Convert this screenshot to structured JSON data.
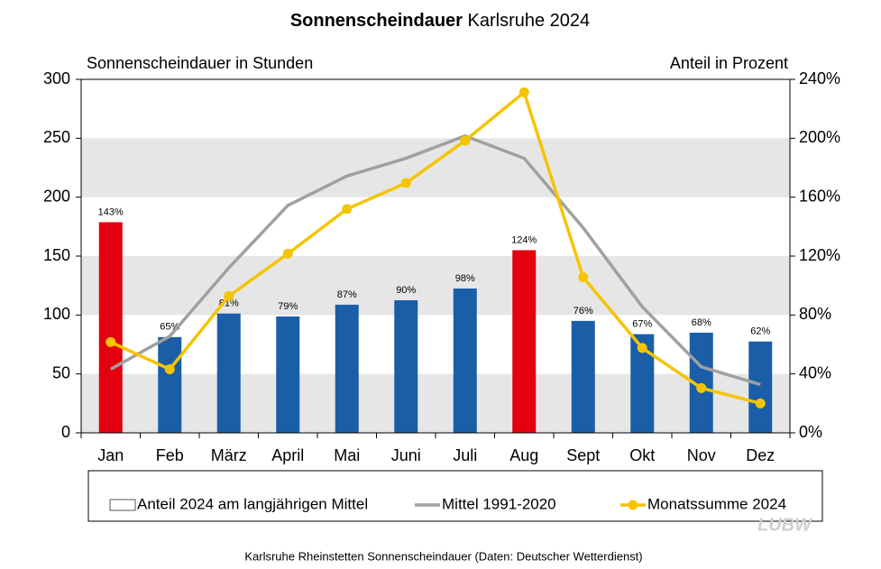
{
  "chart_data": {
    "type": "bar_line",
    "title": [
      "Sonnenscheindauer",
      "Karlsruhe 2024"
    ],
    "y_label": "Sonnenscheindauer  in Stunden",
    "y2_label": "Anteil  in Prozent",
    "footer": "Karlsruhe Rheinstetten Sonnenscheindauer (Daten: Deutscher Wetterdienst)",
    "logo": "LUBW",
    "categories": [
      "Jan",
      "Feb",
      "März",
      "April",
      "Mai",
      "Juni",
      "Juli",
      "Aug",
      "Sept",
      "Okt",
      "Nov",
      "Dez"
    ],
    "ylim": [
      0,
      300
    ],
    "yticks": [
      0,
      50,
      100,
      150,
      200,
      250,
      300
    ],
    "y2lim": [
      0,
      240
    ],
    "y2ticks": [
      {
        "value": 0,
        "label": "0%"
      },
      {
        "value": 40,
        "label": "40%"
      },
      {
        "value": 80,
        "label": "80%"
      },
      {
        "value": 120,
        "label": "120%"
      },
      {
        "value": 160,
        "label": "160%"
      },
      {
        "value": 200,
        "label": "200%"
      },
      {
        "value": 240,
        "label": "240%"
      }
    ],
    "bands": true,
    "series": [
      {
        "name": "Anteil 2024 am langjährigen Mittel",
        "kind": "bar",
        "axis": "y2",
        "colors": [
          "#e3000f",
          "#1a5ea8",
          "#1a5ea8",
          "#1a5ea8",
          "#1a5ea8",
          "#1a5ea8",
          "#1a5ea8",
          "#e3000f",
          "#1a5ea8",
          "#1a5ea8",
          "#1a5ea8",
          "#1a5ea8"
        ],
        "values": [
          143,
          65,
          81,
          79,
          87,
          90,
          98,
          124,
          76,
          67,
          68,
          62
        ],
        "value_labels": [
          "143%",
          "65%",
          "81%",
          "79%",
          "87%",
          "90%",
          "98%",
          "124%",
          "76%",
          "67%",
          "68%",
          "62%"
        ]
      },
      {
        "name": "Mittel 1991-2020",
        "kind": "line",
        "color": "#a0a0a0",
        "values": [
          54,
          82,
          140,
          193,
          218,
          233,
          252,
          233,
          174,
          107,
          56,
          41
        ]
      },
      {
        "name": "Monatssumme 2024",
        "kind": "line",
        "markers": true,
        "color": "#f5c400",
        "values": [
          77,
          54,
          116,
          152,
          190,
          212,
          248,
          289,
          132,
          72,
          38,
          25
        ]
      }
    ]
  }
}
